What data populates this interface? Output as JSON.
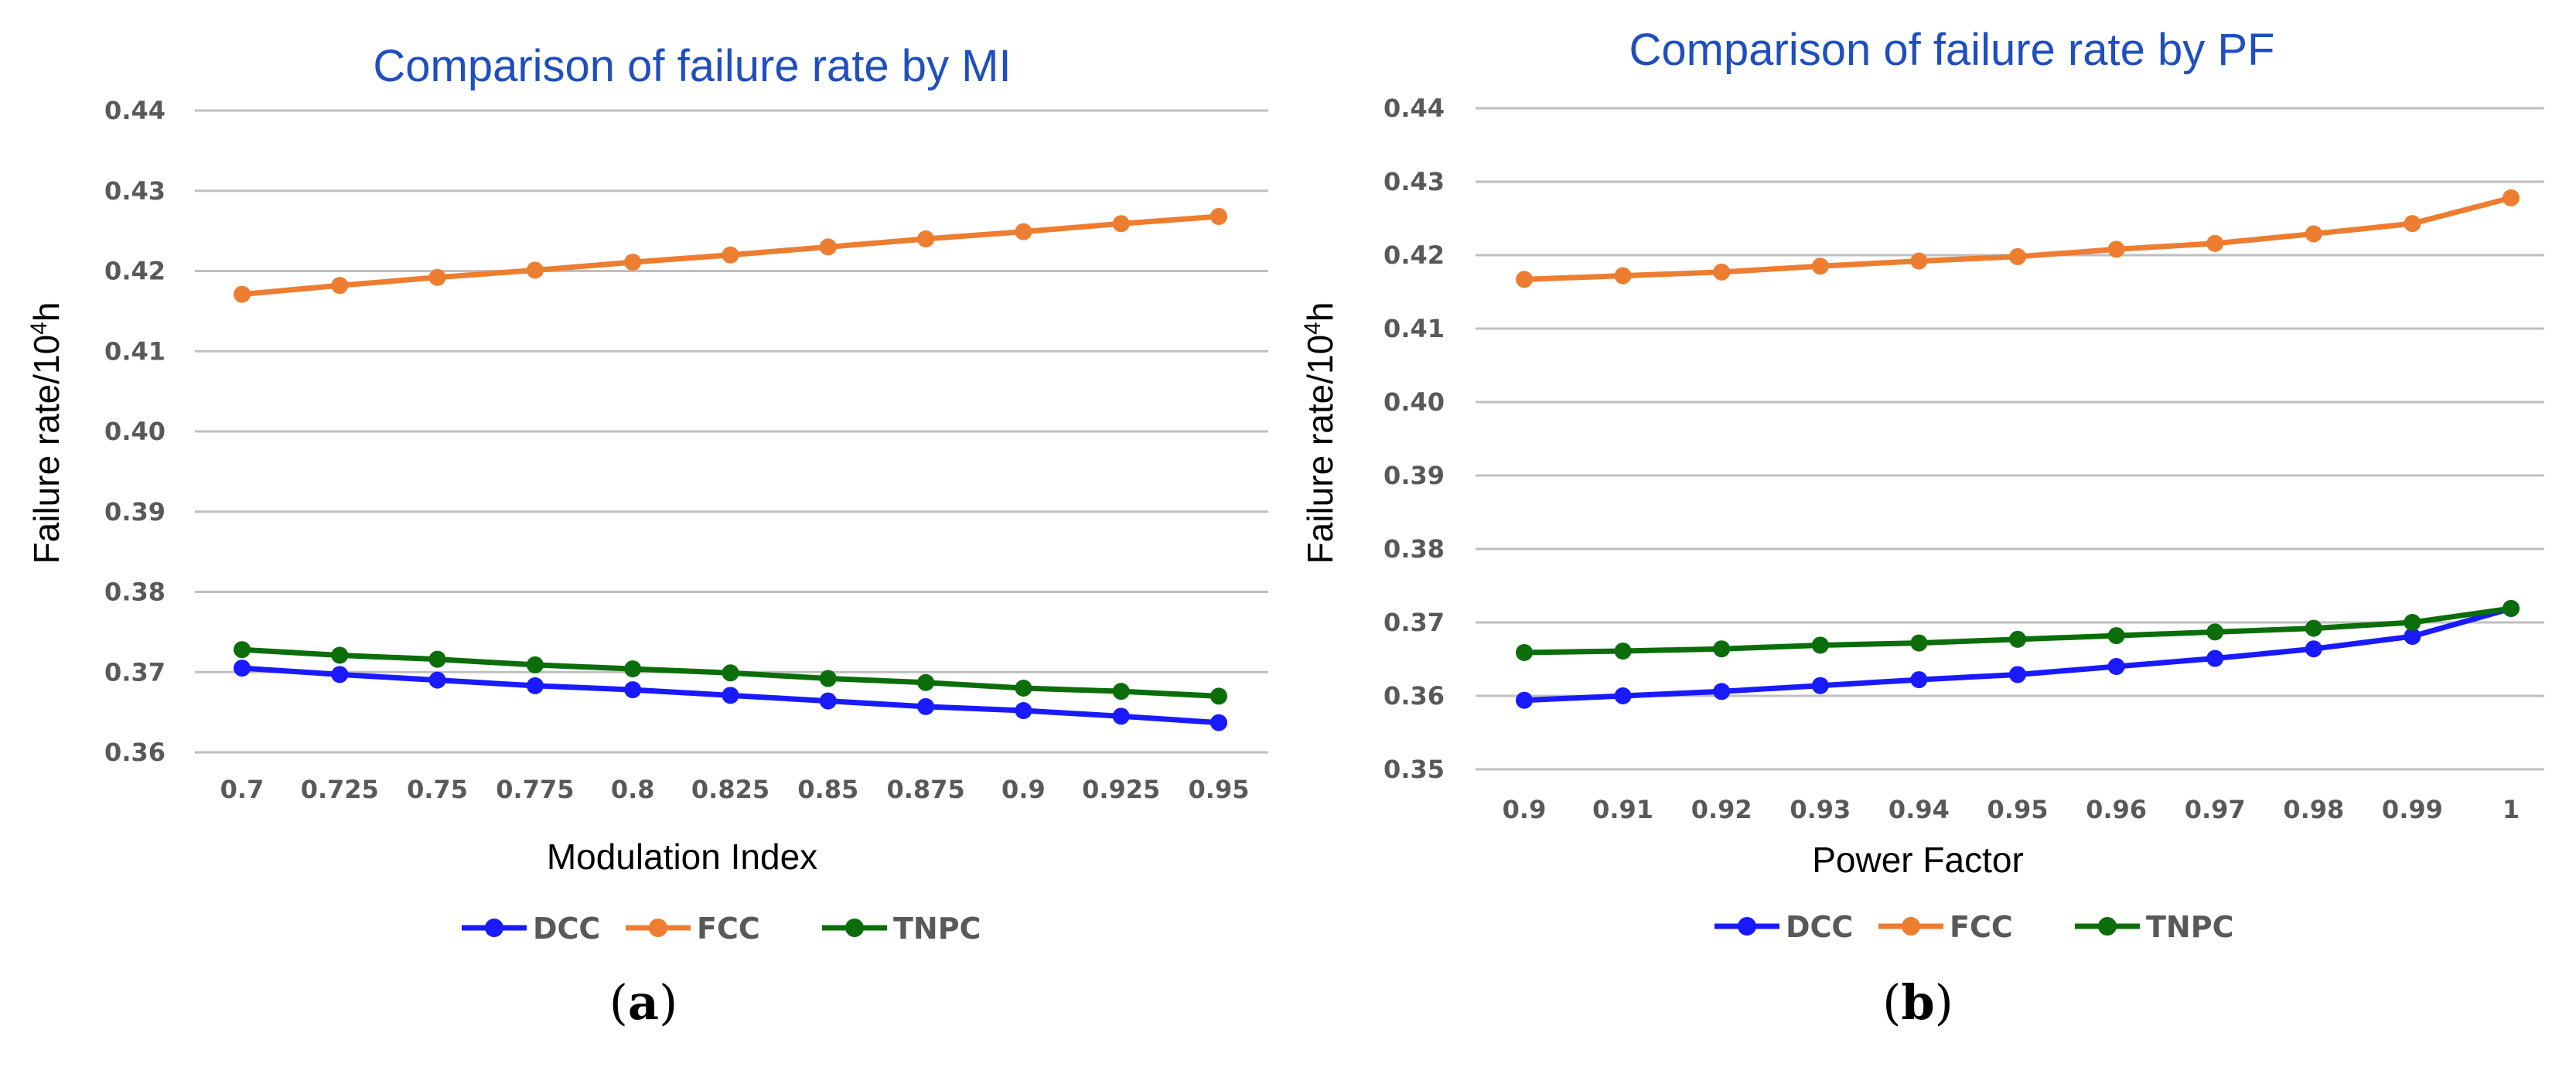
{
  "chart_data": [
    {
      "type": "line",
      "title": "Comparison of failure rate by MI",
      "xlabel": "Modulation Index",
      "ylabel": "Failure rate/10",
      "ylabel_sup": "4",
      "ylabel_suffix": "h",
      "caption": "a",
      "categories": [
        "0.7",
        "0.725",
        "0.75",
        "0.775",
        "0.8",
        "0.825",
        "0.85",
        "0.875",
        "0.9",
        "0.925",
        "0.95"
      ],
      "yticks": [
        "0.36",
        "0.37",
        "0.38",
        "0.39",
        "0.40",
        "0.41",
        "0.42",
        "0.43",
        "0.44"
      ],
      "ylim": [
        0.36,
        0.44
      ],
      "grid": true,
      "legend": "bottom",
      "series": [
        {
          "name": "DCC",
          "color": "#1a1aff",
          "values": [
            0.3705,
            0.3697,
            0.369,
            0.3683,
            0.3678,
            0.3671,
            0.3664,
            0.3657,
            0.3652,
            0.3645,
            0.3637
          ]
        },
        {
          "name": "FCC",
          "color": "#ed7d31",
          "values": [
            0.4171,
            0.4182,
            0.4192,
            0.4201,
            0.4211,
            0.422,
            0.423,
            0.424,
            0.4249,
            0.4259,
            0.4268
          ]
        },
        {
          "name": "TNPC",
          "color": "#0b6e0b",
          "values": [
            0.3728,
            0.3721,
            0.3716,
            0.3709,
            0.3704,
            0.3699,
            0.3692,
            0.3687,
            0.368,
            0.3676,
            0.367
          ]
        }
      ]
    },
    {
      "type": "line",
      "title": "Comparison of failure rate by PF",
      "xlabel": "Power Factor",
      "ylabel": "Failure rate/10",
      "ylabel_sup": "4",
      "ylabel_suffix": "h",
      "caption": "b",
      "categories": [
        "0.9",
        "0.91",
        "0.92",
        "0.93",
        "0.94",
        "0.95",
        "0.96",
        "0.97",
        "0.98",
        "0.99",
        "1"
      ],
      "yticks": [
        "0.35",
        "0.36",
        "0.37",
        "0.38",
        "0.39",
        "0.40",
        "0.41",
        "0.42",
        "0.43",
        "0.44"
      ],
      "ylim": [
        0.35,
        0.44
      ],
      "grid": true,
      "legend": "bottom",
      "series": [
        {
          "name": "DCC",
          "color": "#1a1aff",
          "values": [
            0.3594,
            0.36,
            0.3606,
            0.3614,
            0.3622,
            0.3629,
            0.364,
            0.3651,
            0.3664,
            0.3681,
            0.3719
          ]
        },
        {
          "name": "FCC",
          "color": "#ed7d31",
          "values": [
            0.4167,
            0.4172,
            0.4177,
            0.4185,
            0.4192,
            0.4198,
            0.4208,
            0.4216,
            0.4229,
            0.4243,
            0.4278
          ]
        },
        {
          "name": "TNPC",
          "color": "#0b6e0b",
          "values": [
            0.3659,
            0.3661,
            0.3664,
            0.3669,
            0.3672,
            0.3677,
            0.3682,
            0.3687,
            0.3692,
            0.37,
            0.3719
          ]
        }
      ]
    }
  ]
}
